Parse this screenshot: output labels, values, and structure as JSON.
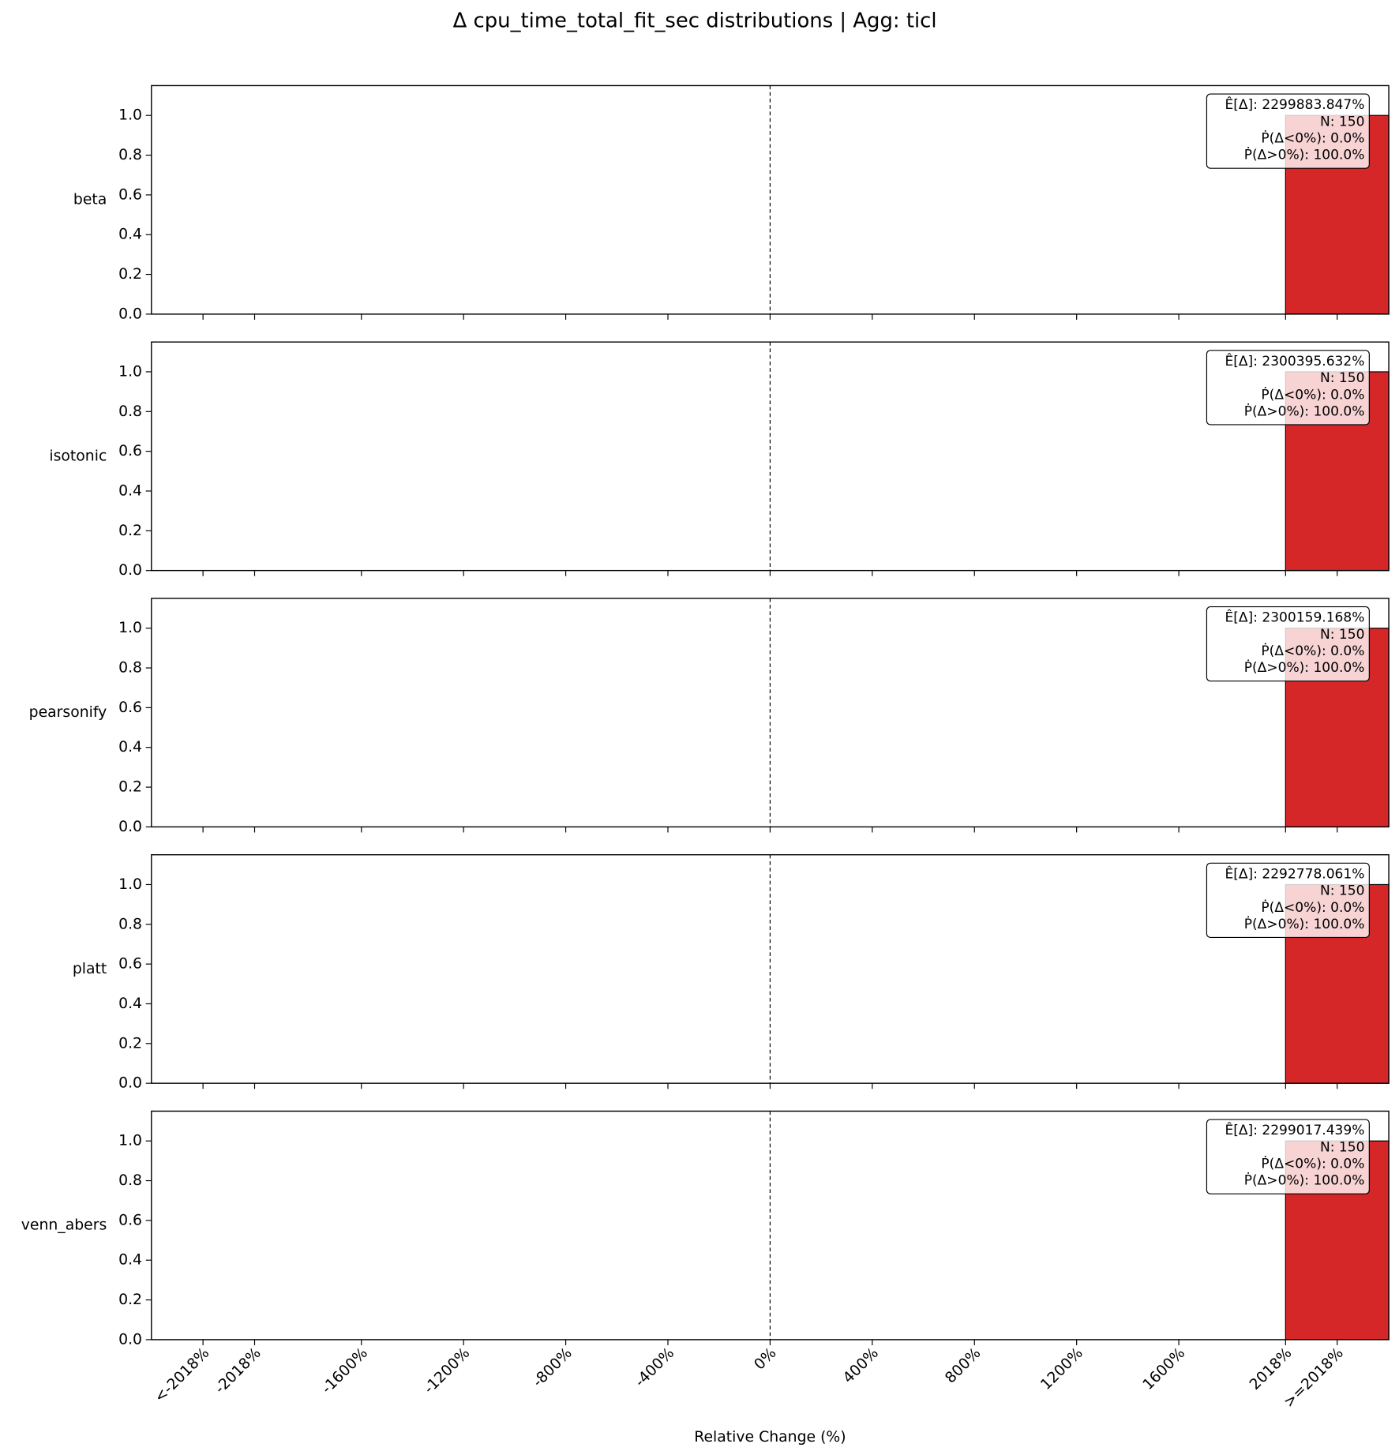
{
  "title": "Δ cpu_time_total_fit_sec distributions | Agg: ticl",
  "xlabel": "Relative Change (%)",
  "xlim": [
    -2422,
    2422
  ],
  "xticks": [
    {
      "value": -2220,
      "label": "<-2018%"
    },
    {
      "value": -2018,
      "label": "-2018%"
    },
    {
      "value": -1600,
      "label": "-1600%"
    },
    {
      "value": -1200,
      "label": "-1200%"
    },
    {
      "value": -800,
      "label": "-800%"
    },
    {
      "value": -400,
      "label": "-400%"
    },
    {
      "value": 0,
      "label": "0%"
    },
    {
      "value": 400,
      "label": "400%"
    },
    {
      "value": 800,
      "label": "800%"
    },
    {
      "value": 1200,
      "label": "1200%"
    },
    {
      "value": 1600,
      "label": "1600%"
    },
    {
      "value": 2018,
      "label": "2018%"
    },
    {
      "value": 2220,
      "label": ">=2018%"
    }
  ],
  "ylim": [
    0,
    1.15
  ],
  "yticks": [
    {
      "value": 0,
      "label": "0.0"
    },
    {
      "value": 0.2,
      "label": "0.2"
    },
    {
      "value": 0.4,
      "label": "0.4"
    },
    {
      "value": 0.6,
      "label": "0.6"
    },
    {
      "value": 0.8,
      "label": "0.8"
    },
    {
      "value": 1,
      "label": "1.0"
    }
  ],
  "vline": 0,
  "chart_data": [
    {
      "type": "histogram",
      "ylabel": "beta",
      "bins": [
        2018,
        2422
      ],
      "values": [
        1
      ],
      "color": "#d62728",
      "annotation": [
        "Ê[Δ]: 2299883.847%",
        "N: 150",
        "Ṗ(Δ<0%): 0.0%",
        "Ṗ(Δ>0%): 100.0%"
      ]
    },
    {
      "type": "histogram",
      "ylabel": "isotonic",
      "bins": [
        2018,
        2422
      ],
      "values": [
        1
      ],
      "color": "#d62728",
      "annotation": [
        "Ê[Δ]: 2300395.632%",
        "N: 150",
        "Ṗ(Δ<0%): 0.0%",
        "Ṗ(Δ>0%): 100.0%"
      ]
    },
    {
      "type": "histogram",
      "ylabel": "pearsonify",
      "bins": [
        2018,
        2422
      ],
      "values": [
        1
      ],
      "color": "#d62728",
      "annotation": [
        "Ê[Δ]: 2300159.168%",
        "N: 150",
        "Ṗ(Δ<0%): 0.0%",
        "Ṗ(Δ>0%): 100.0%"
      ]
    },
    {
      "type": "histogram",
      "ylabel": "platt",
      "bins": [
        2018,
        2422
      ],
      "values": [
        1
      ],
      "color": "#d62728",
      "annotation": [
        "Ê[Δ]: 2292778.061%",
        "N: 150",
        "Ṗ(Δ<0%): 0.0%",
        "Ṗ(Δ>0%): 100.0%"
      ]
    },
    {
      "type": "histogram",
      "ylabel": "venn_abers",
      "bins": [
        2018,
        2422
      ],
      "values": [
        1
      ],
      "color": "#d62728",
      "annotation": [
        "Ê[Δ]: 2299017.439%",
        "N: 150",
        "Ṗ(Δ<0%): 0.0%",
        "Ṗ(Δ>0%): 100.0%"
      ]
    }
  ]
}
